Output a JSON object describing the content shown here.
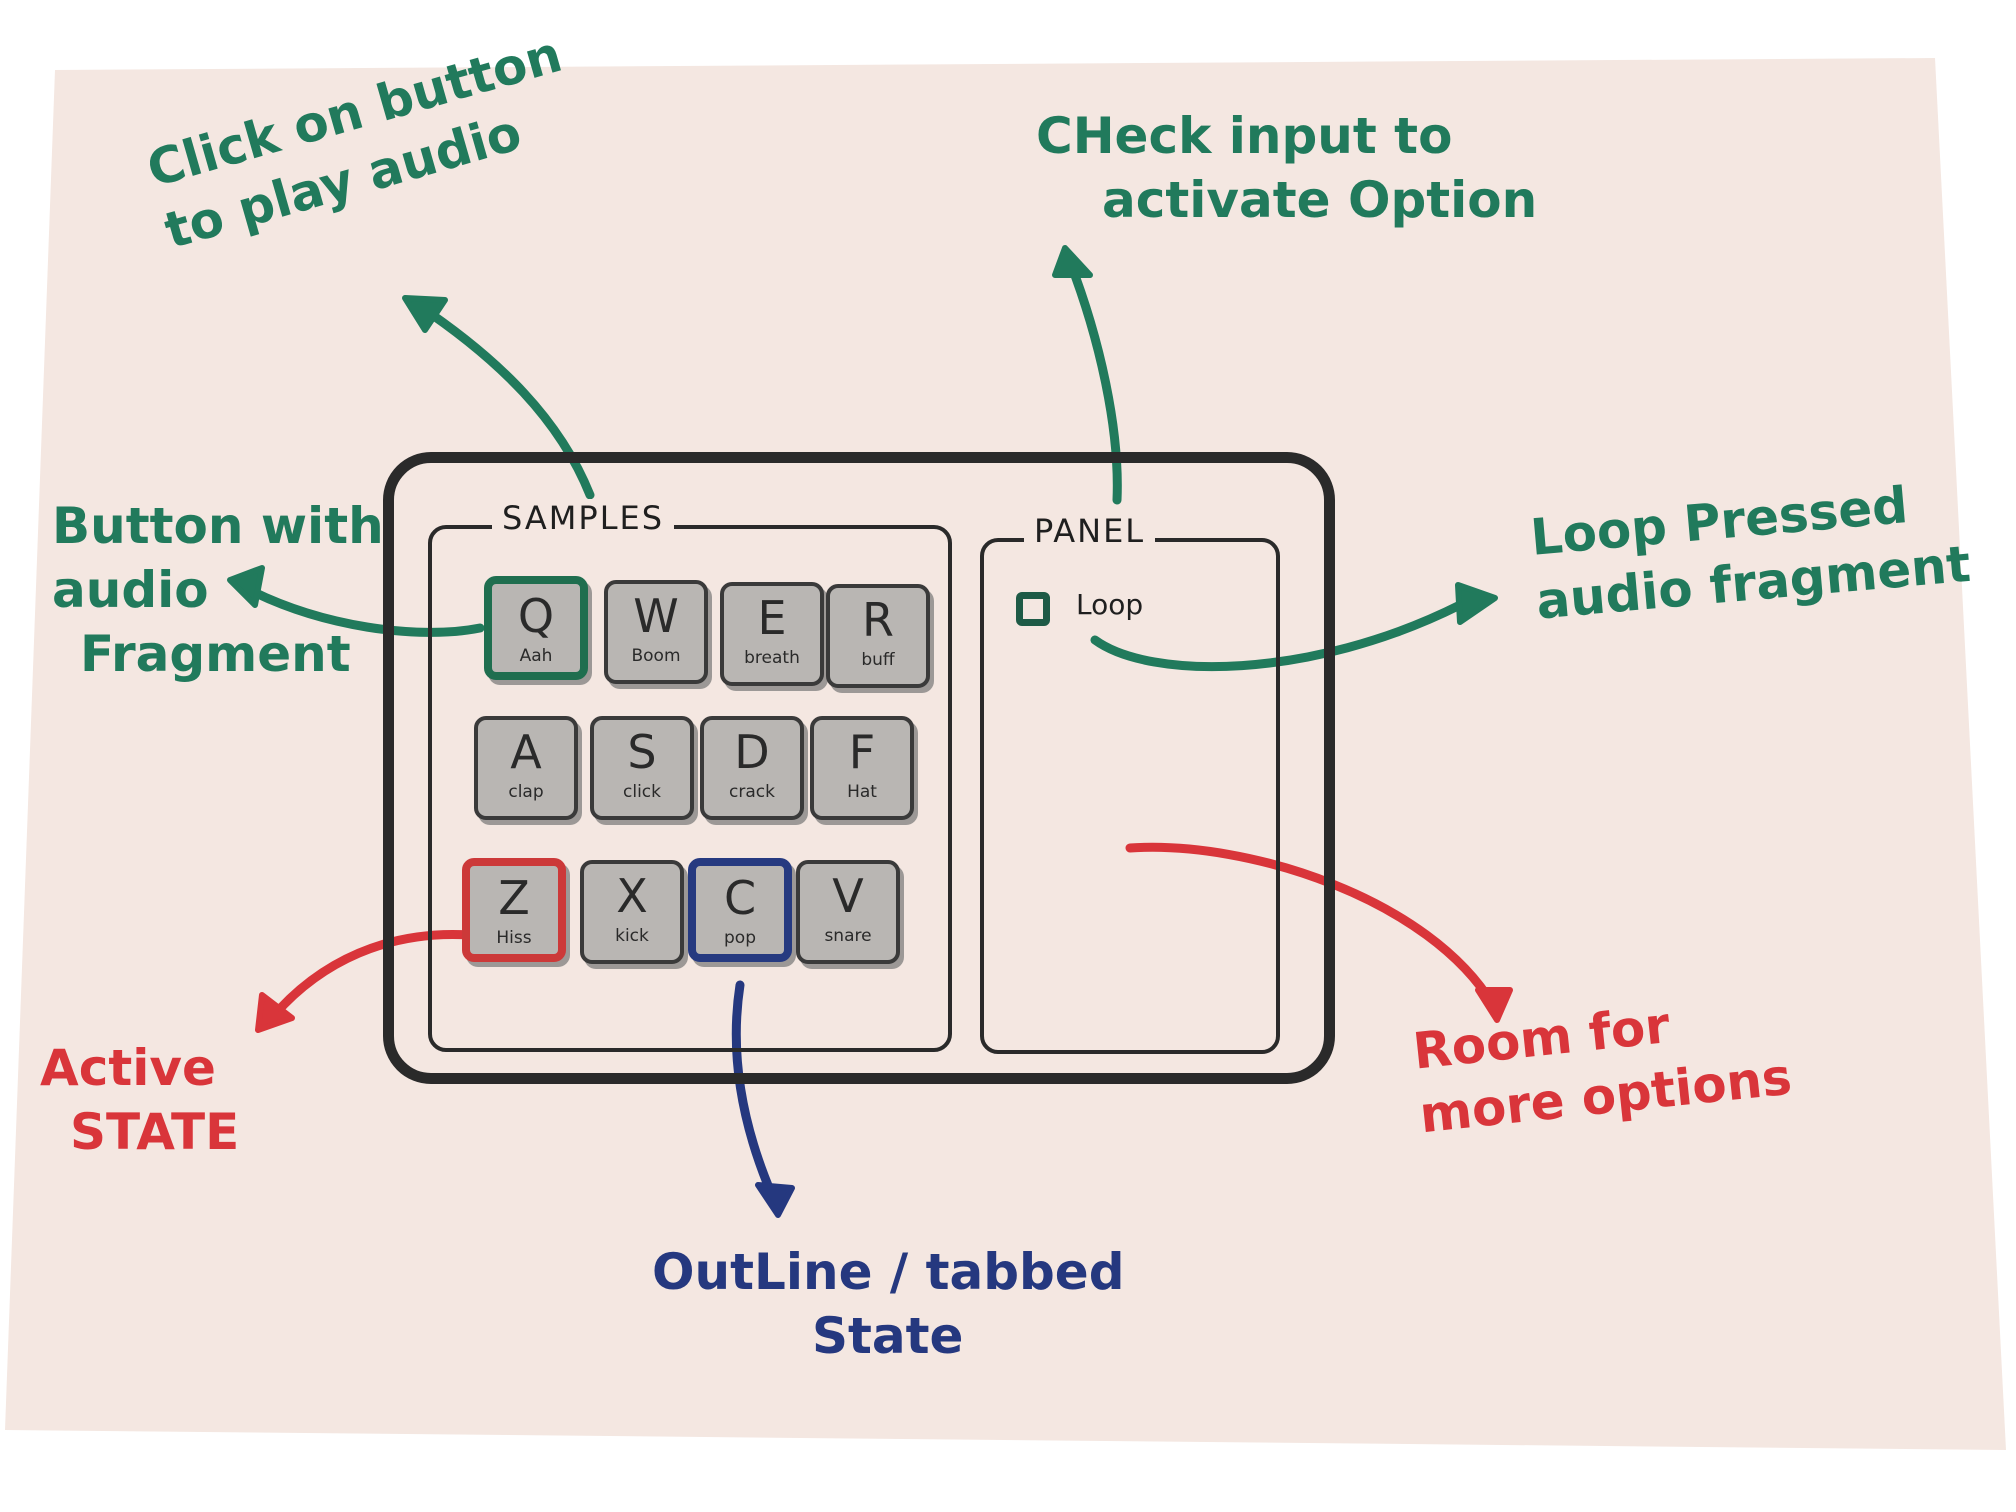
{
  "colors": {
    "paper": "#f4e7e1",
    "ink": "#2a2a2a",
    "pad_fill": "#b9b6b3",
    "annotation_green": "#217a5c",
    "annotation_red": "#d9353a",
    "annotation_blue": "#25387f"
  },
  "samples": {
    "title": "SAMPLES",
    "rows": [
      [
        {
          "key": "Q",
          "label": "Aah",
          "state": "green-state"
        },
        {
          "key": "W",
          "label": "Boom",
          "state": ""
        },
        {
          "key": "E",
          "label": "breath",
          "state": ""
        },
        {
          "key": "R",
          "label": "buff",
          "state": ""
        }
      ],
      [
        {
          "key": "A",
          "label": "clap",
          "state": ""
        },
        {
          "key": "S",
          "label": "click",
          "state": ""
        },
        {
          "key": "D",
          "label": "crack",
          "state": ""
        },
        {
          "key": "F",
          "label": "Hat",
          "state": ""
        }
      ],
      [
        {
          "key": "Z",
          "label": "Hiss",
          "state": "red-state"
        },
        {
          "key": "X",
          "label": "kick",
          "state": ""
        },
        {
          "key": "C",
          "label": "pop",
          "state": "blue-state"
        },
        {
          "key": "V",
          "label": "snare",
          "state": ""
        }
      ]
    ]
  },
  "panel": {
    "title": "PANEL",
    "loop_label": "Loop"
  },
  "annotations": {
    "click_button": [
      "Click on button",
      "to play audio"
    ],
    "button_fragment": [
      "Button with",
      "audio",
      "Fragment"
    ],
    "check_input": [
      "CHeck input to",
      "activate Option"
    ],
    "loop_pressed": [
      "Loop Pressed",
      "audio fragment"
    ],
    "active_state": [
      "Active",
      "STATE"
    ],
    "outline_state": [
      "OutLine / tabbed",
      "State"
    ],
    "room_options": [
      "Room for",
      "more options"
    ]
  }
}
